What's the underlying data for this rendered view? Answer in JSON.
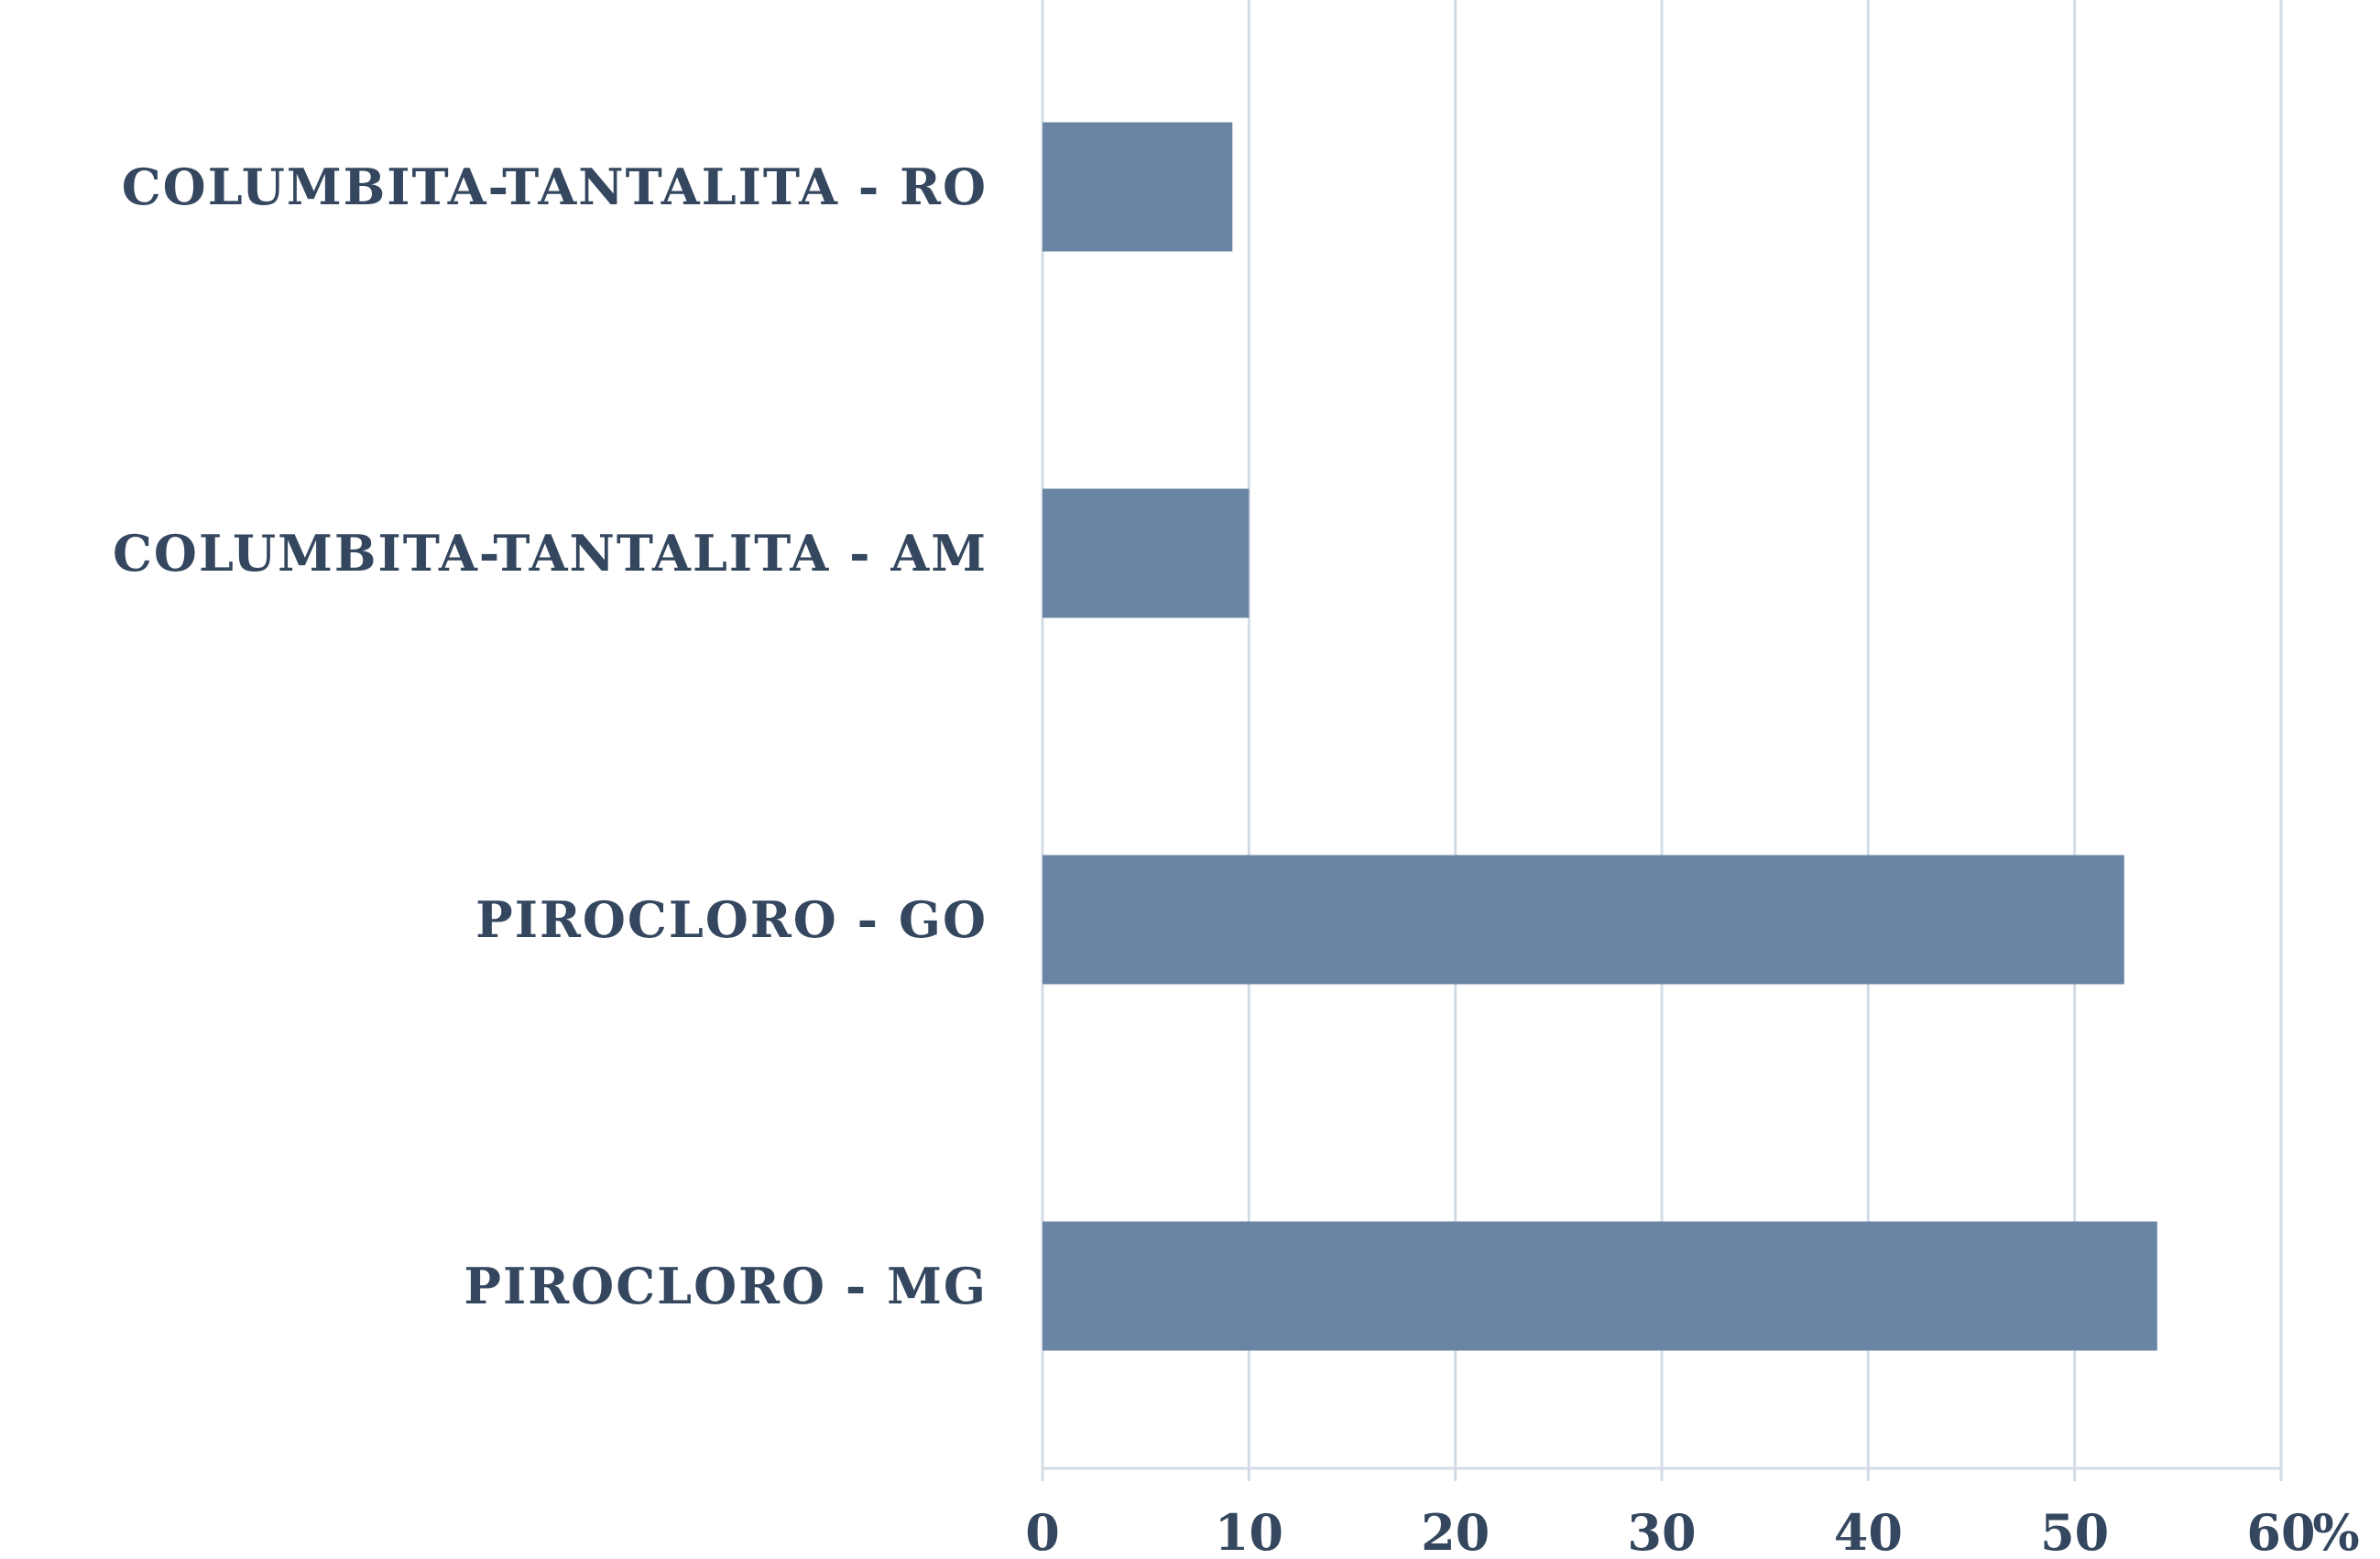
{
  "chart_data": {
    "type": "bar",
    "orientation": "horizontal",
    "categories": [
      "COLUMBITA-TANTALITA - RO",
      "COLUMBITA-TANTALITA - AM",
      "PIROCLORO - GO",
      "PIROCLORO - MG"
    ],
    "values": [
      9.2,
      10.0,
      52.4,
      54.0
    ],
    "xlim": [
      0,
      60
    ],
    "xticks": [
      "0",
      "10",
      "20",
      "30",
      "40",
      "50",
      "60"
    ],
    "xunit": "%",
    "grid": true,
    "bar_color": "#6a84a4",
    "grid_color": "#d3dce6",
    "text_color": "#34475f"
  }
}
